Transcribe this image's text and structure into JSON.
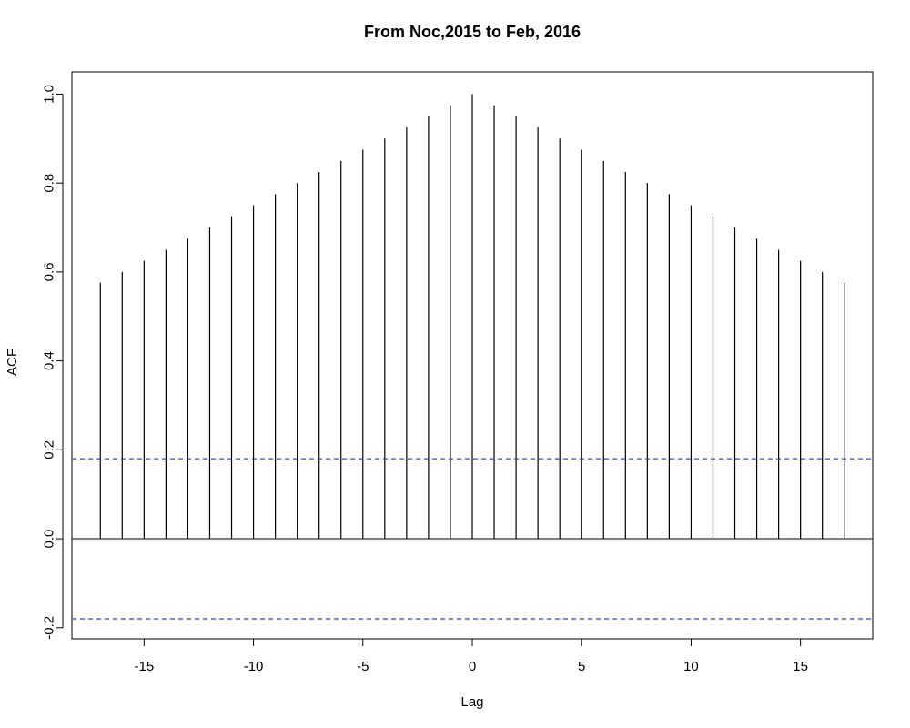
{
  "chart_data": {
    "type": "bar",
    "title": "From Noc,2015 to Feb, 2016",
    "xlabel": "Lag",
    "ylabel": "ACF",
    "xlim": [
      -18.3,
      18.3
    ],
    "ylim": [
      -0.225,
      1.05
    ],
    "x_ticks": [
      -15,
      -10,
      -5,
      0,
      5,
      10,
      15
    ],
    "x_tick_labels": [
      "-15",
      "-10",
      "-5",
      "0",
      "5",
      "10",
      "15"
    ],
    "y_ticks": [
      -0.2,
      0.0,
      0.2,
      0.4,
      0.6,
      0.8,
      1.0
    ],
    "y_tick_labels": [
      "-0.2",
      "0.0",
      "0.2",
      "0.4",
      "0.6",
      "0.8",
      "1.0"
    ],
    "x": [
      -17,
      -16,
      -15,
      -14,
      -13,
      -12,
      -11,
      -10,
      -9,
      -8,
      -7,
      -6,
      -5,
      -4,
      -3,
      -2,
      -1,
      0,
      1,
      2,
      3,
      4,
      5,
      6,
      7,
      8,
      9,
      10,
      11,
      12,
      13,
      14,
      15,
      16,
      17
    ],
    "values": [
      0.576,
      0.6,
      0.625,
      0.65,
      0.675,
      0.7,
      0.725,
      0.75,
      0.775,
      0.8,
      0.825,
      0.85,
      0.875,
      0.9,
      0.925,
      0.95,
      0.975,
      1.0,
      0.975,
      0.95,
      0.925,
      0.9,
      0.875,
      0.85,
      0.825,
      0.8,
      0.775,
      0.75,
      0.725,
      0.7,
      0.675,
      0.65,
      0.625,
      0.6,
      0.576
    ],
    "confidence_bounds": [
      0.18,
      -0.18
    ],
    "grid": false,
    "colors": {
      "bars": "#000000",
      "confidence": "#3b3bd4"
    }
  }
}
